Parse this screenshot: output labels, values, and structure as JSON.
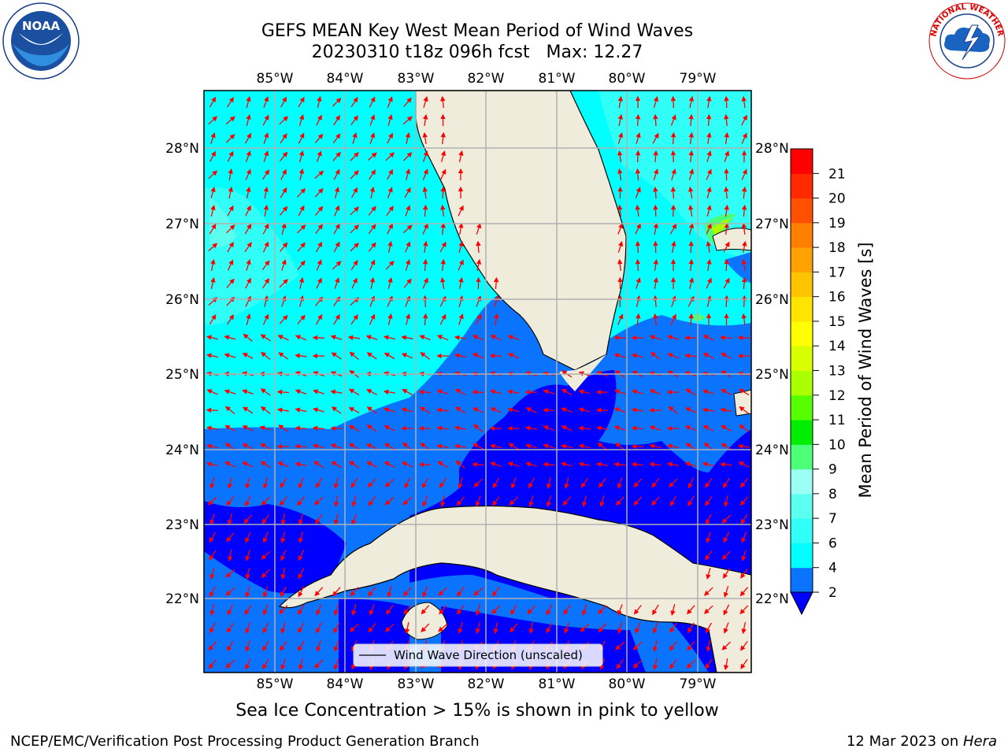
{
  "header": {
    "title_line1": "GEFS MEAN Key West Mean Period of Wind Waves",
    "title_line2": "20230310 t18z 096h fcst   Max: 12.27"
  },
  "logos": {
    "left": "NOAA",
    "left_ring_text": "NATIONAL OCEANIC AND ATMOSPHERIC ADMINISTRATION · U.S. DEPARTMENT OF COMMERCE",
    "right_ring_text": "NATIONAL WEATHER SERVICE"
  },
  "map": {
    "lon_labels": [
      "85°W",
      "84°W",
      "83°W",
      "82°W",
      "81°W",
      "80°W",
      "79°W"
    ],
    "lat_labels": [
      "28°N",
      "27°N",
      "26°N",
      "25°N",
      "24°N",
      "23°N",
      "22°N"
    ],
    "legend_label": "Wind Wave Direction (unscaled)",
    "arrow_color": "#ff0000",
    "land_color": "#efecdc",
    "grid_color": "#b0b0b0"
  },
  "colorbar": {
    "label": "Mean Period of Wind Waves [s]",
    "ticks": [
      "2",
      "4",
      "6",
      "7",
      "8",
      "9",
      "10",
      "11",
      "12",
      "13",
      "14",
      "15",
      "16",
      "17",
      "18",
      "19",
      "20",
      "21"
    ],
    "colors": [
      "#0a74ff",
      "#00ffff",
      "#2ffff6",
      "#5bfff0",
      "#9cfff5",
      "#4bff78",
      "#00ee00",
      "#55ff00",
      "#aaff00",
      "#d8ff00",
      "#ffff00",
      "#ffe400",
      "#ffc400",
      "#ffa100",
      "#ff7f00",
      "#ff5000",
      "#ff2a00",
      "#ff0000"
    ],
    "extend_color": "#0000ff"
  },
  "caption": "Sea Ice Concentration > 15% is shown in pink to yellow",
  "footer": {
    "left": "NCEP/EMC/Verification Post Processing Product Generation Branch",
    "right_prefix": "12 Mar 2023 on ",
    "right_host": "Hera"
  }
}
